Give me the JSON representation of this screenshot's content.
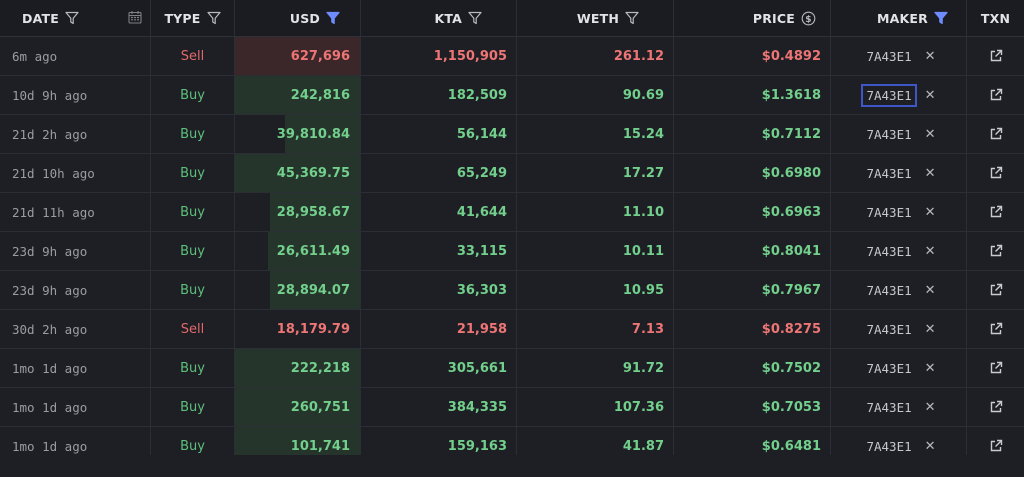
{
  "header": {
    "date": "DATE",
    "type": "TYPE",
    "usd": "USD",
    "kta": "KTA",
    "weth": "WETH",
    "price": "PRICE",
    "maker": "MAKER",
    "txn": "TXN"
  },
  "colors": {
    "buy": "#5cc07a",
    "sell": "#e2686a",
    "accent": "#6f8cff"
  },
  "rows": [
    {
      "date": "6m ago",
      "type": "Sell",
      "usd": "627,696",
      "kta": "1,150,905",
      "weth": "261.12",
      "price": "$0.4892",
      "maker": "7A43E1",
      "usd_share": 0.0
    },
    {
      "date": "10d 9h ago",
      "type": "Buy",
      "usd": "242,816",
      "kta": "182,509",
      "weth": "90.69",
      "price": "$1.3618",
      "maker": "7A43E1",
      "usd_share": 1.0
    },
    {
      "date": "21d 2h ago",
      "type": "Buy",
      "usd": "39,810.84",
      "kta": "56,144",
      "weth": "15.24",
      "price": "$0.7112",
      "maker": "7A43E1",
      "usd_share": 0.6
    },
    {
      "date": "21d 10h ago",
      "type": "Buy",
      "usd": "45,369.75",
      "kta": "65,249",
      "weth": "17.27",
      "price": "$0.6980",
      "maker": "7A43E1",
      "usd_share": 1.0
    },
    {
      "date": "21d 11h ago",
      "type": "Buy",
      "usd": "28,958.67",
      "kta": "41,644",
      "weth": "11.10",
      "price": "$0.6963",
      "maker": "7A43E1",
      "usd_share": 0.72
    },
    {
      "date": "23d 9h ago",
      "type": "Buy",
      "usd": "26,611.49",
      "kta": "33,115",
      "weth": "10.11",
      "price": "$0.8041",
      "maker": "7A43E1",
      "usd_share": 0.74
    },
    {
      "date": "23d 9h ago",
      "type": "Buy",
      "usd": "28,894.07",
      "kta": "36,303",
      "weth": "10.95",
      "price": "$0.7967",
      "maker": "7A43E1",
      "usd_share": 0.72
    },
    {
      "date": "30d 2h ago",
      "type": "Sell",
      "usd": "18,179.79",
      "kta": "21,958",
      "weth": "7.13",
      "price": "$0.8275",
      "maker": "7A43E1",
      "usd_share": 0.0
    },
    {
      "date": "1mo 1d ago",
      "type": "Buy",
      "usd": "222,218",
      "kta": "305,661",
      "weth": "91.72",
      "price": "$0.7502",
      "maker": "7A43E1",
      "usd_share": 1.0
    },
    {
      "date": "1mo 1d ago",
      "type": "Buy",
      "usd": "260,751",
      "kta": "384,335",
      "weth": "107.36",
      "price": "$0.7053",
      "maker": "7A43E1",
      "usd_share": 1.0
    },
    {
      "date": "1mo 1d ago",
      "type": "Buy",
      "usd": "101,741",
      "kta": "159,163",
      "weth": "41.87",
      "price": "$0.6481",
      "maker": "7A43E1",
      "usd_share": 1.0
    }
  ],
  "selected_maker_row": 1
}
